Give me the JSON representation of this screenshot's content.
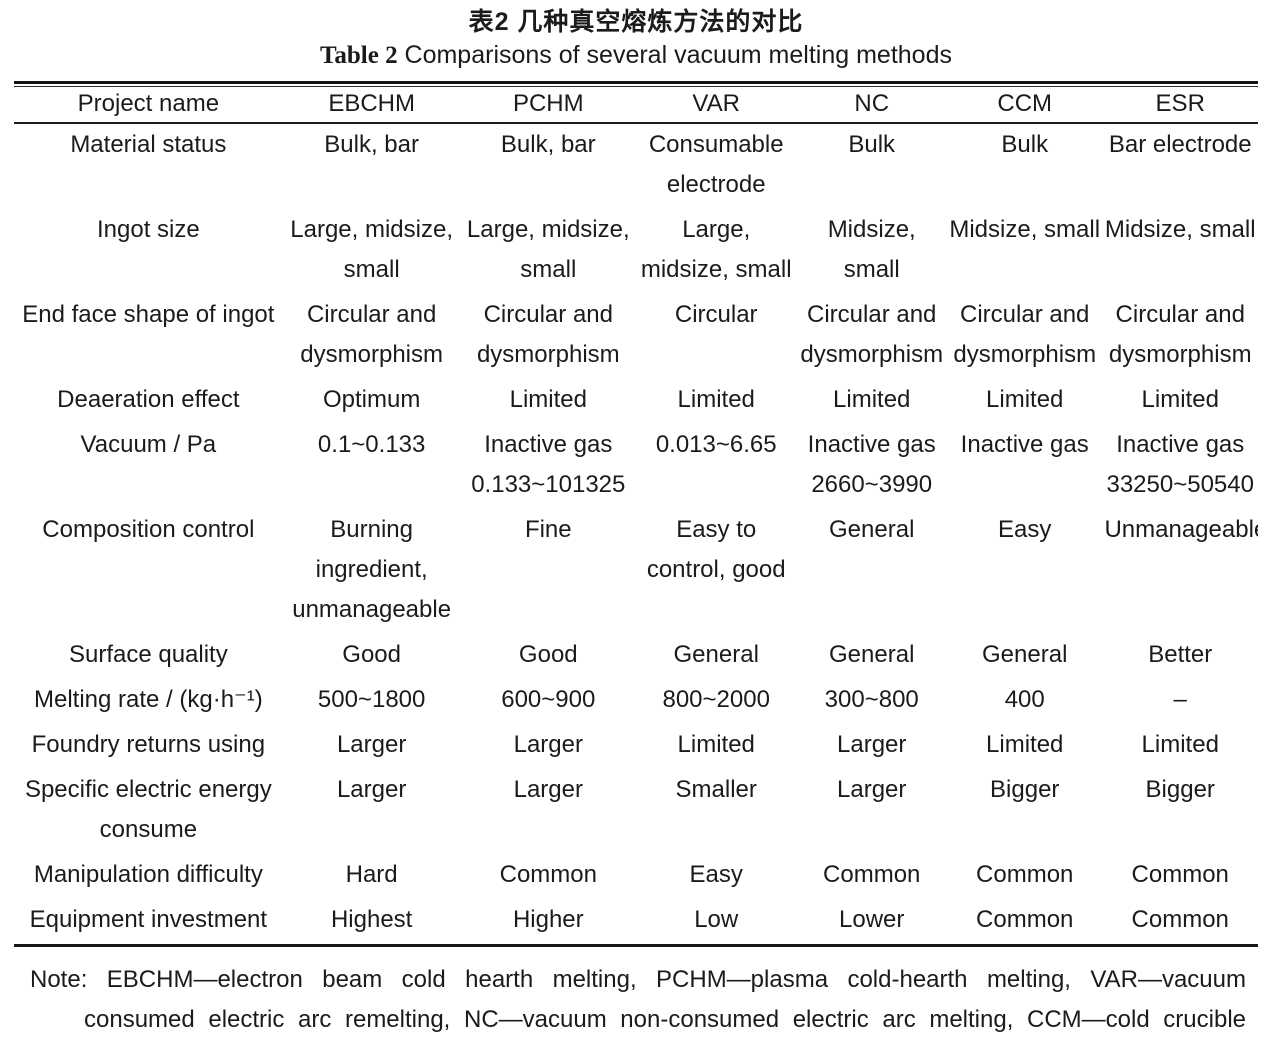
{
  "caption": {
    "zh_label": "表2",
    "zh_title": "几种真空熔炼方法的对比",
    "en_label": "Table 2",
    "en_title": " Comparisons of several vacuum melting methods"
  },
  "table": {
    "columns": [
      "Project name",
      "EBCHM",
      "PCHM",
      "VAR",
      "NC",
      "CCM",
      "ESR"
    ],
    "rows": [
      {
        "label": "Material status",
        "values": [
          "Bulk, bar",
          "Bulk, bar",
          "Consumable\nelectrode",
          "Bulk",
          "Bulk",
          "Bar electrode"
        ]
      },
      {
        "label": "Ingot size",
        "values": [
          "Large, midsize,\nsmall",
          "Large, midsize,\nsmall",
          "Large,\nmidsize, small",
          "Midsize, small",
          "Midsize, small",
          "Midsize, small"
        ]
      },
      {
        "label": "End face shape of ingot",
        "values": [
          "Circular and\ndysmorphism",
          "Circular and\ndysmorphism",
          "Circular",
          "Circular and\ndysmorphism",
          "Circular and\ndysmorphism",
          "Circular and\ndysmorphism"
        ]
      },
      {
        "label": "Deaeration effect",
        "values": [
          "Optimum",
          "Limited",
          "Limited",
          "Limited",
          "Limited",
          "Limited"
        ]
      },
      {
        "label": "Vacuum / Pa",
        "values": [
          "0.1~0.133",
          "Inactive gas\n0.133~101325",
          "0.013~6.65",
          "Inactive gas\n2660~3990",
          "Inactive gas",
          "Inactive gas\n33250~50540"
        ]
      },
      {
        "label": "Composition control",
        "values": [
          "Burning\ningredient,\nunmanageable",
          "Fine",
          "Easy to\ncontrol, good",
          "General",
          "Easy",
          "Unmanageable"
        ]
      },
      {
        "label": "Surface quality",
        "values": [
          "Good",
          "Good",
          "General",
          "General",
          "General",
          "Better"
        ]
      },
      {
        "label": "Melting rate / (kg·h⁻¹)",
        "values": [
          "500~1800",
          "600~900",
          "800~2000",
          "300~800",
          "400",
          "–"
        ]
      },
      {
        "label": "Foundry returns using",
        "values": [
          "Larger",
          "Larger",
          "Limited",
          "Larger",
          "Limited",
          "Limited"
        ]
      },
      {
        "label": "Specific electric energy\nconsume",
        "values": [
          "Larger",
          "Larger",
          "Smaller",
          "Larger",
          "Bigger",
          "Bigger"
        ]
      },
      {
        "label": "Manipulation difficulty",
        "values": [
          "Hard",
          "Common",
          "Easy",
          "Common",
          "Common",
          "Common"
        ]
      },
      {
        "label": "Equipment investment",
        "values": [
          "Highest",
          "Higher",
          "Low",
          "Lower",
          "Common",
          "Common"
        ]
      }
    ]
  },
  "note": "Note: EBCHM—electron beam cold hearth melting, PCHM—plasma cold-hearth melting, VAR—vacuum consumed electric arc remelting, NC—vacuum non-consumed electric arc melting, CCM—cold crucible melting, ESR—electric slag remelting"
}
